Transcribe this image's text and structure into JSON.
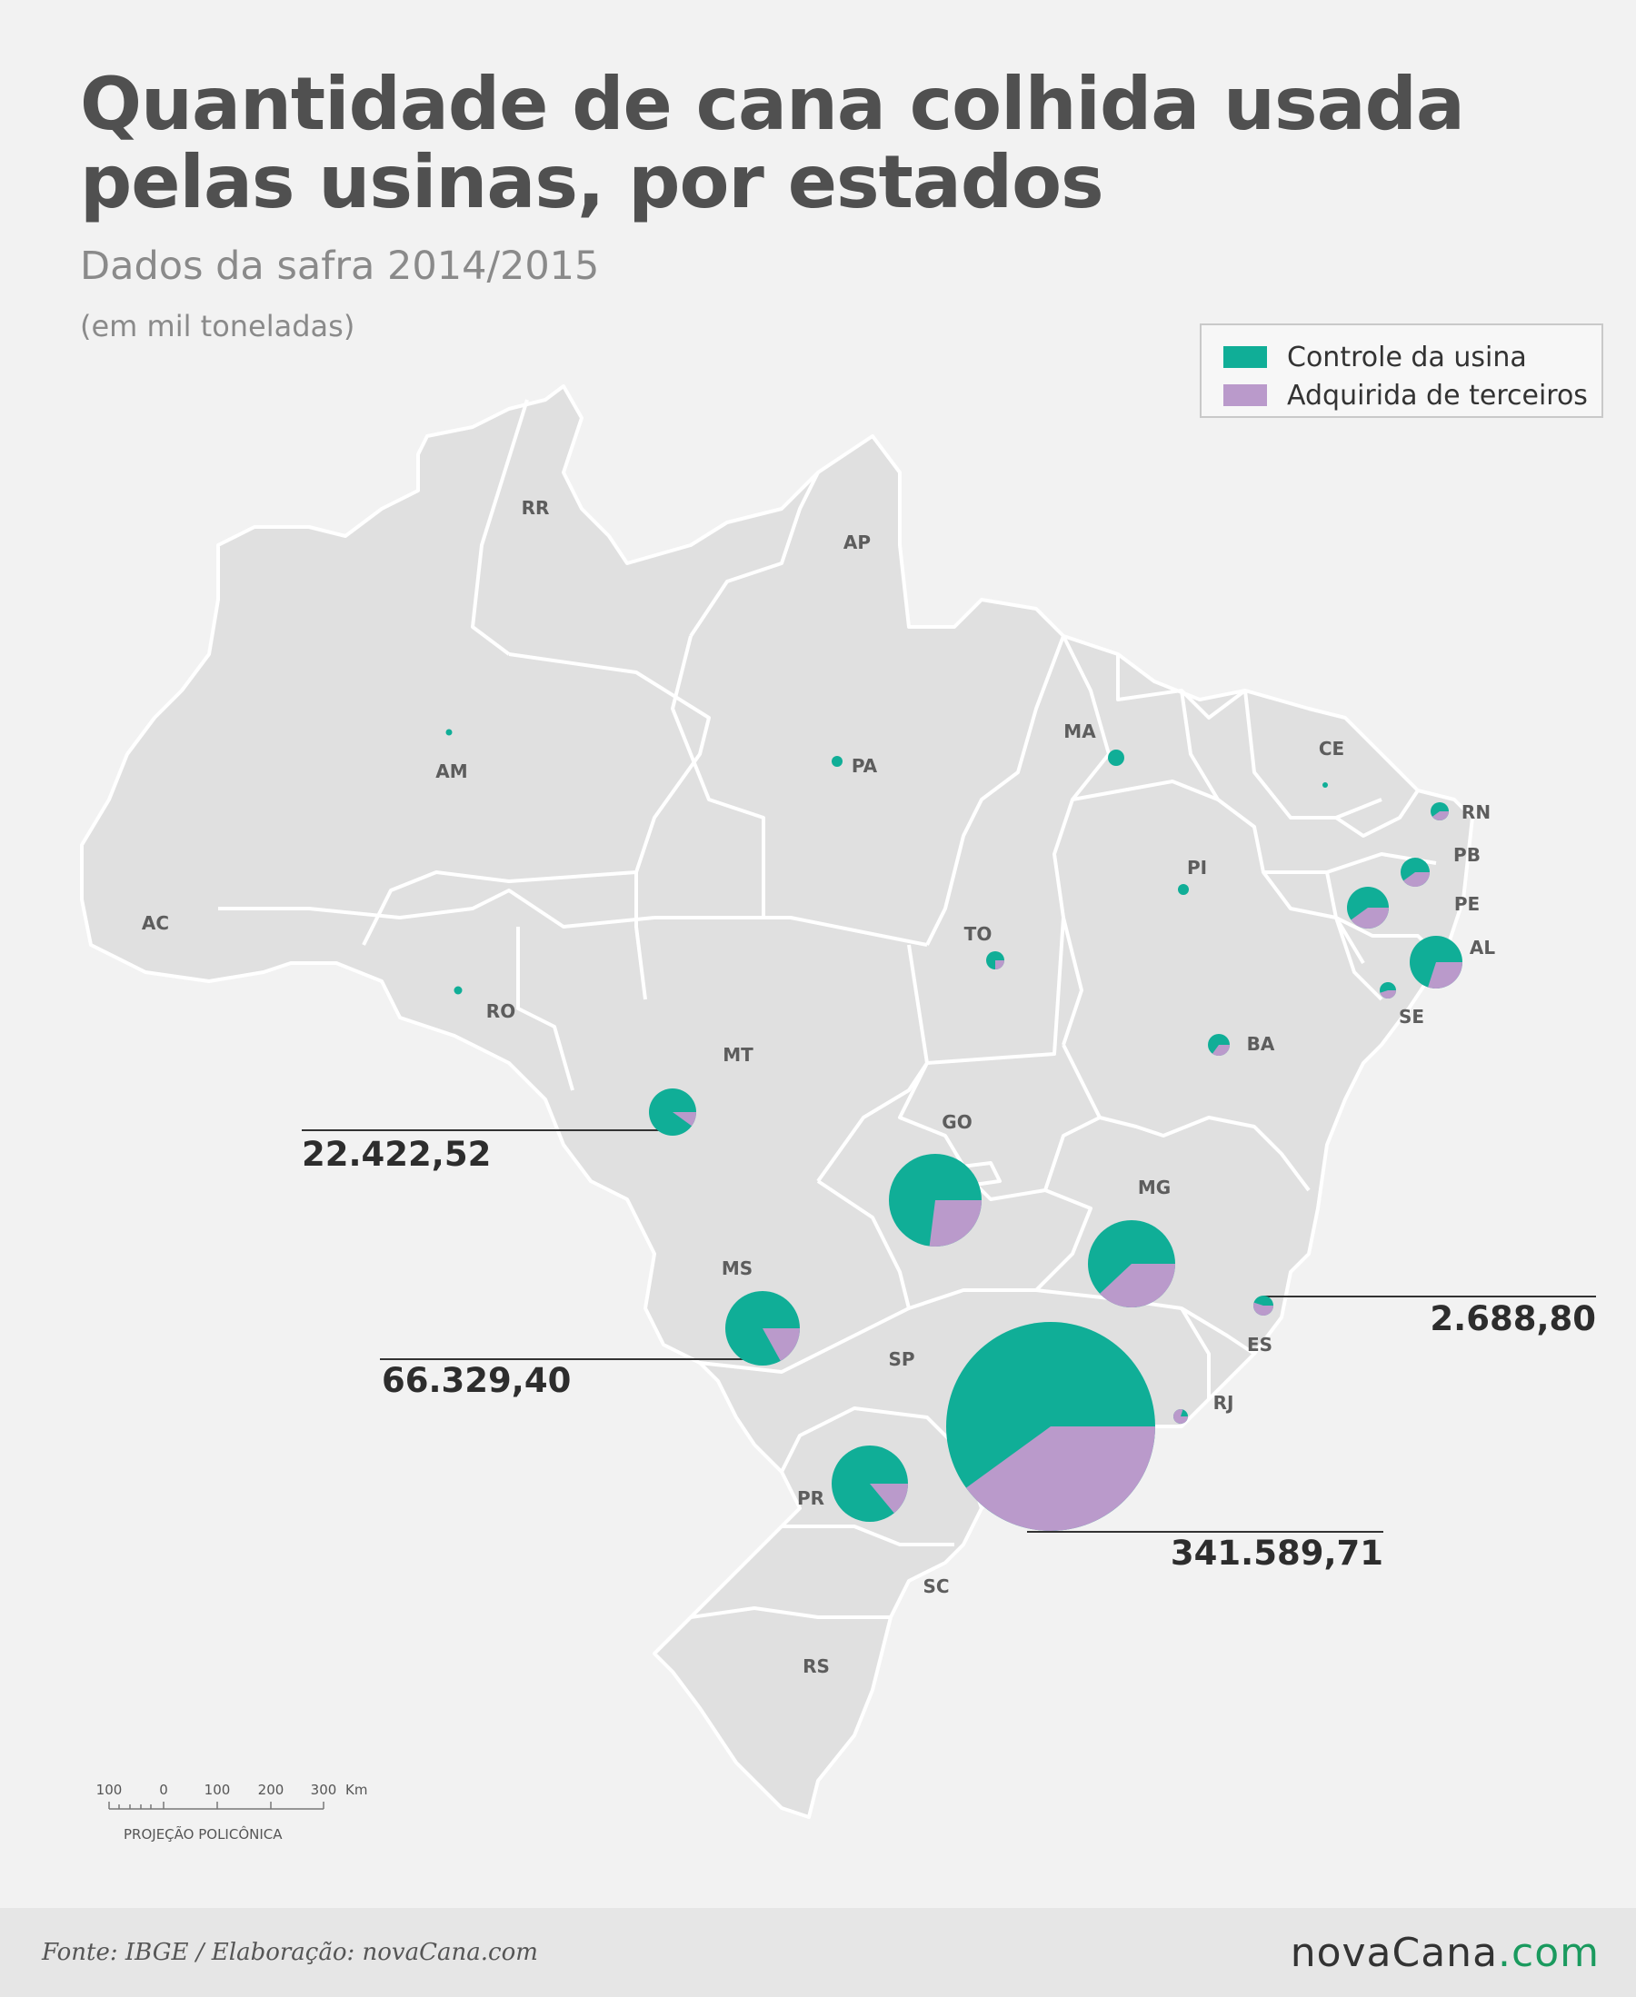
{
  "title": "Quantidade de cana colhida usada pelas usinas, por estados",
  "subtitle": "Dados da safra 2014/2015",
  "unit": "(em mil toneladas)",
  "legend": {
    "controle": {
      "label": "Controle da usina",
      "color": "#10ae97"
    },
    "terceiros": {
      "label": "Adquirida de terceiros",
      "color": "#ba9acb"
    }
  },
  "states": [
    {
      "id": "RR",
      "label": "RR"
    },
    {
      "id": "AP",
      "label": "AP"
    },
    {
      "id": "AM",
      "label": "AM"
    },
    {
      "id": "PA",
      "label": "PA"
    },
    {
      "id": "MA",
      "label": "MA"
    },
    {
      "id": "CE",
      "label": "CE"
    },
    {
      "id": "RN",
      "label": "RN"
    },
    {
      "id": "PB",
      "label": "PB"
    },
    {
      "id": "PE",
      "label": "PE"
    },
    {
      "id": "AL",
      "label": "AL"
    },
    {
      "id": "SE",
      "label": "SE"
    },
    {
      "id": "PI",
      "label": "PI"
    },
    {
      "id": "AC",
      "label": "AC"
    },
    {
      "id": "TO",
      "label": "TO"
    },
    {
      "id": "RO",
      "label": "RO"
    },
    {
      "id": "BA",
      "label": "BA"
    },
    {
      "id": "MT",
      "label": "MT"
    },
    {
      "id": "GO",
      "label": "GO"
    },
    {
      "id": "MG",
      "label": "MG"
    },
    {
      "id": "MS",
      "label": "MS"
    },
    {
      "id": "ES",
      "label": "ES"
    },
    {
      "id": "SP",
      "label": "SP"
    },
    {
      "id": "RJ",
      "label": "RJ"
    },
    {
      "id": "PR",
      "label": "PR"
    },
    {
      "id": "SC",
      "label": "SC"
    },
    {
      "id": "RS",
      "label": "RS"
    }
  ],
  "callouts": [
    {
      "state": "MT",
      "value": "22.422,52"
    },
    {
      "state": "MS",
      "value": "66.329,40"
    },
    {
      "state": "ES",
      "value": "2.688,80"
    },
    {
      "state": "SP",
      "value": "341.589,71"
    }
  ],
  "pies": [
    {
      "state": "SP",
      "terceiros_share": 0.4
    },
    {
      "state": "GO",
      "terceiros_share": 0.27
    },
    {
      "state": "MG",
      "terceiros_share": 0.38
    },
    {
      "state": "PR",
      "terceiros_share": 0.14
    },
    {
      "state": "MS",
      "terceiros_share": 0.17
    },
    {
      "state": "MT",
      "terceiros_share": 0.1
    },
    {
      "state": "AL",
      "terceiros_share": 0.3
    },
    {
      "state": "PE",
      "terceiros_share": 0.4
    },
    {
      "state": "PB",
      "terceiros_share": 0.4
    },
    {
      "state": "RN",
      "terceiros_share": 0.4
    },
    {
      "state": "SE",
      "terceiros_share": 0.45
    },
    {
      "state": "BA",
      "terceiros_share": 0.35
    },
    {
      "state": "ES",
      "terceiros_share": 0.55
    },
    {
      "state": "RJ",
      "terceiros_share": 0.8
    },
    {
      "state": "TO",
      "terceiros_share": 0.25
    },
    {
      "state": "MA",
      "terceiros_share": 0.0
    },
    {
      "state": "PI",
      "terceiros_share": 0.0
    },
    {
      "state": "PA",
      "terceiros_share": 0.0
    },
    {
      "state": "AM",
      "terceiros_share": 0.0
    },
    {
      "state": "RO",
      "terceiros_share": 0.0
    },
    {
      "state": "CE",
      "terceiros_share": 0.0
    }
  ],
  "scale": {
    "ticks": [
      "100",
      "0",
      "100",
      "200",
      "300"
    ],
    "unit": "Km",
    "projection": "PROJEÇÃO POLICÔNICA"
  },
  "footer": {
    "source": "Fonte: IBGE / Elaboração: novaCana.com",
    "logo_main": "novaCana",
    "logo_suffix": ".com"
  }
}
